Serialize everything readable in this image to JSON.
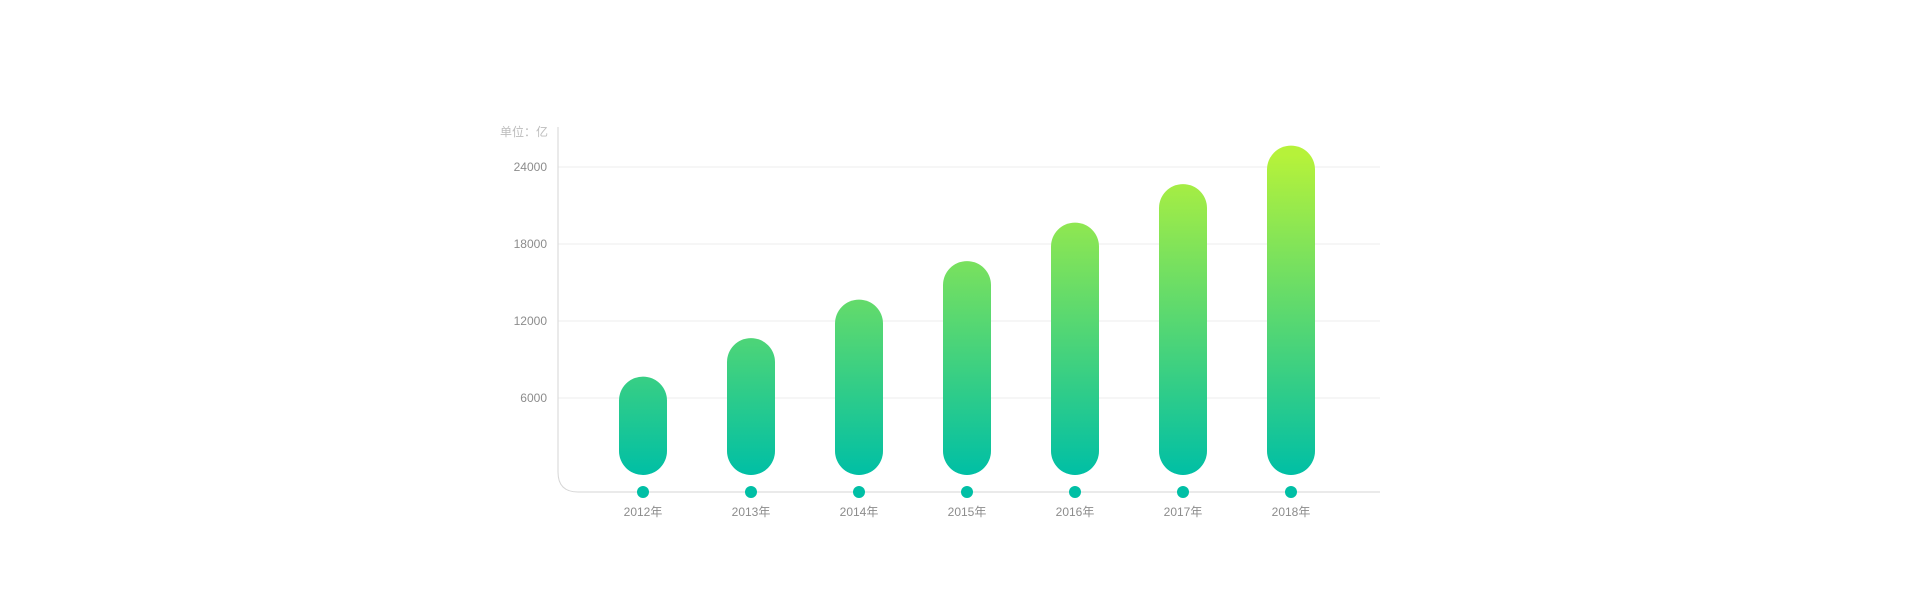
{
  "chart_data": {
    "type": "bar",
    "unit_label": "单位：亿",
    "categories": [
      "2012年",
      "2013年",
      "2014年",
      "2015年",
      "2016年",
      "2017年",
      "2018年"
    ],
    "values": [
      5800,
      8800,
      11800,
      14800,
      17800,
      20800,
      23800
    ],
    "yticks": [
      6000,
      12000,
      18000,
      24000
    ],
    "ylim": [
      0,
      27000
    ],
    "grid": true,
    "colors": {
      "bar_bottom": "#00bfa5",
      "bar_top": "#b6f23a",
      "dot": "#00bfa5",
      "axis": "#d6d6d6",
      "grid": "#eeeeee"
    }
  }
}
